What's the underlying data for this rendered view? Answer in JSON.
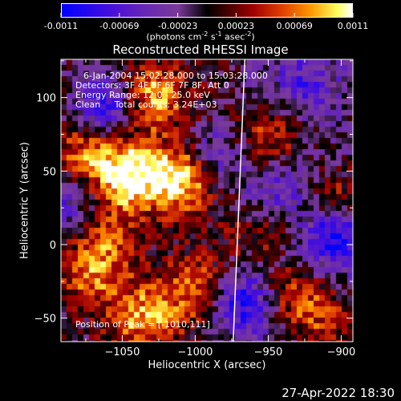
{
  "colorbar": {
    "ticks": [
      "-0.0011",
      "-0.00069",
      "-0.00023",
      "0.00023",
      "0.00069",
      "0.0011"
    ],
    "unit": "(photons cm",
    "unit_exp1": "-2",
    "unit_mid": " s",
    "unit_exp2": "-1",
    "unit_mid2": " asec",
    "unit_exp3": "-2",
    "unit_close": ")"
  },
  "chart_data": {
    "type": "heatmap",
    "title": "Reconstructed RHESSI Image",
    "xlabel": "Heliocentric X (arcsec)",
    "ylabel": "Heliocentric Y (arcsec)",
    "xlim": [
      -1092,
      -892
    ],
    "ylim": [
      -66,
      126
    ],
    "xticks": [
      -1050,
      -1000,
      -950,
      -900
    ],
    "xtick_labels": [
      "−1050",
      "−1000",
      "−950",
      "−900"
    ],
    "yticks": [
      -50,
      0,
      50,
      100
    ],
    "ytick_labels": [
      "−50",
      "0",
      "50",
      "100"
    ],
    "zlim": [
      -0.0011,
      0.0011
    ],
    "limb_line": [
      [
        -974,
        -66
      ],
      [
        -966,
        126
      ]
    ],
    "annotations": [
      "6-Jan-2004 15:02:28.000 to 15:03:28.000",
      "Detectors: 3F 4F 5F 6F 7F 8F, Att 0",
      "Energy Range: 12.0 - 25.0 keV",
      "Clean     Total counts: 3.24E+03"
    ],
    "peak_label": "Position of Peak = [-1010,111]",
    "bright_regions": [
      {
        "x": -1045,
        "y": 48,
        "level": 0.0011
      },
      {
        "x": -1010,
        "y": 45,
        "level": 0.0011
      },
      {
        "x": -1030,
        "y": 100,
        "level": 0.0009
      },
      {
        "x": -1075,
        "y": 60,
        "level": 0.0007
      },
      {
        "x": -1070,
        "y": -20,
        "level": 0.0007
      },
      {
        "x": -1035,
        "y": -50,
        "level": 0.0008
      },
      {
        "x": -1000,
        "y": -30,
        "level": 0.0007
      },
      {
        "x": -1060,
        "y": 10,
        "level": 0.0005
      },
      {
        "x": -950,
        "y": 70,
        "level": 0.0007
      },
      {
        "x": -905,
        "y": 30,
        "level": 0.0006
      },
      {
        "x": -930,
        "y": -35,
        "level": 0.0006
      },
      {
        "x": -910,
        "y": -55,
        "level": 0.0005
      },
      {
        "x": -955,
        "y": 5,
        "level": 0.0004
      }
    ],
    "dark_regions": [
      {
        "x": -1060,
        "y": 95,
        "level": -0.0009
      },
      {
        "x": -970,
        "y": -40,
        "level": -0.0009
      },
      {
        "x": -905,
        "y": 5,
        "level": -0.001
      },
      {
        "x": -985,
        "y": 60,
        "level": -0.0006
      },
      {
        "x": -925,
        "y": 110,
        "level": -0.0005
      },
      {
        "x": -1085,
        "y": 30,
        "level": -0.0006
      },
      {
        "x": -940,
        "y": 40,
        "level": -0.0005
      }
    ]
  },
  "footer": {
    "timestamp": "27-Apr-2022 18:30"
  }
}
